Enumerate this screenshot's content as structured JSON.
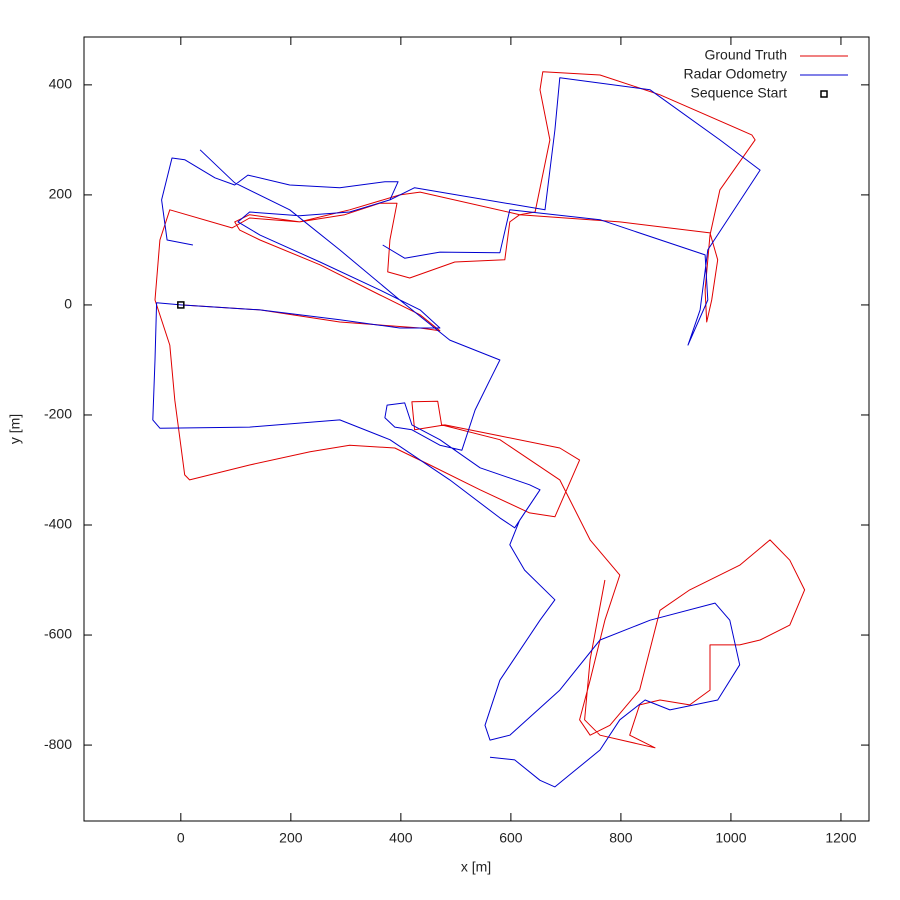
{
  "chart_data": {
    "type": "line",
    "xlabel": "x [m]",
    "ylabel": "y [m]",
    "xlim": [
      -176,
      1251
    ],
    "ylim": [
      -938,
      487
    ],
    "xticks": [
      0,
      200,
      400,
      600,
      800,
      1000,
      1200
    ],
    "yticks": [
      -800,
      -600,
      -400,
      -200,
      0,
      200,
      400
    ],
    "grid": false,
    "legend": "top-right",
    "series": [
      {
        "name": "Ground Truth",
        "color": "#e00000",
        "x": [
          0,
          144,
          289,
          435,
          471,
          435,
          362,
          253,
          144,
          107,
          98,
          125,
          216,
          298,
          362,
          393,
          380,
          376,
          416,
          498,
          589,
          598,
          616,
          798,
          962,
          976,
          965,
          956,
          953,
          962,
          980,
          1044,
          1038,
          871,
          762,
          658,
          653,
          671,
          644,
          616,
          435,
          398,
          307,
          216,
          125,
          93,
          -20,
          -38,
          -47,
          -20,
          -11,
          7,
          16,
          125,
          235,
          307,
          389,
          453,
          544,
          634,
          680,
          725,
          689,
          580,
          480,
          425,
          420,
          467,
          474,
          580,
          689,
          744,
          798,
          771,
          744,
          725,
          744,
          780,
          834,
          871,
          925,
          1016,
          1071,
          1107,
          1134,
          1107,
          1053,
          1016,
          962,
          962,
          925,
          871,
          834,
          816,
          862,
          762,
          734,
          744,
          771
        ],
        "values": [
          0,
          -9,
          -31,
          -42,
          -47,
          -18,
          18,
          73,
          118,
          136,
          151,
          164,
          151,
          164,
          185,
          185,
          118,
          60,
          49,
          78,
          82,
          151,
          164,
          151,
          131,
          82,
          9,
          -31,
          27,
          127,
          209,
          300,
          309,
          382,
          418,
          424,
          391,
          300,
          169,
          164,
          205,
          200,
          173,
          151,
          158,
          140,
          173,
          118,
          9,
          -73,
          -173,
          -309,
          -318,
          -291,
          -267,
          -255,
          -260,
          -291,
          -336,
          -378,
          -385,
          -282,
          -260,
          -238,
          -218,
          -227,
          -176,
          -175,
          -218,
          -245,
          -318,
          -427,
          -491,
          -573,
          -682,
          -754,
          -782,
          -764,
          -700,
          -555,
          -518,
          -473,
          -427,
          -464,
          -518,
          -582,
          -609,
          -618,
          -618,
          -700,
          -727,
          -718,
          -727,
          -782,
          -805,
          -782,
          -754,
          -645,
          -500
        ]
      },
      {
        "name": "Radar Odometry",
        "color": "#0000d0",
        "x": [
          22,
          -25,
          -35,
          -16,
          7,
          62,
          98,
          122,
          198,
          289,
          371,
          395,
          380,
          307,
          216,
          125,
          104,
          144,
          253,
          362,
          435,
          471,
          398,
          289,
          144,
          0,
          -44,
          -47,
          -51,
          -38,
          125,
          289,
          380,
          489,
          580,
          607,
          653,
          616,
          598,
          625,
          680,
          653,
          580,
          553,
          562,
          598,
          689,
          762,
          853,
          971,
          998,
          1016,
          976,
          889,
          844,
          798,
          762,
          707,
          680,
          653,
          607,
          562,
          null,
          367,
          407,
          471,
          580,
          598,
          762,
          953,
          958,
          922,
          944,
          958,
          1053,
          980,
          853,
          689,
          680,
          662,
          425,
          380,
          null,
          35,
          98,
          198,
          289,
          398,
          489,
          580,
          562,
          535,
          511,
          471,
          420,
          389,
          371,
          375,
          407,
          420,
          471,
          544,
          634,
          653
        ],
        "values": [
          109,
          118,
          191,
          267,
          264,
          231,
          218,
          236,
          218,
          213,
          224,
          224,
          191,
          169,
          162,
          169,
          151,
          127,
          78,
          27,
          -9,
          -42,
          -42,
          -27,
          -9,
          0,
          4,
          -100,
          -209,
          -224,
          -222,
          -209,
          -245,
          -318,
          -387,
          -405,
          -336,
          -391,
          -436,
          -482,
          -536,
          -573,
          -682,
          -764,
          -791,
          -782,
          -700,
          -609,
          -573,
          -542,
          -573,
          -654,
          -718,
          -736,
          -718,
          -754,
          -809,
          -854,
          -876,
          -864,
          -827,
          -822,
          null,
          109,
          85,
          96,
          95,
          173,
          155,
          91,
          9,
          -73,
          -9,
          100,
          245,
          300,
          391,
          413,
          318,
          173,
          213,
          191,
          null,
          282,
          222,
          173,
          100,
          9,
          -64,
          -100,
          -136,
          -191,
          -264,
          -255,
          -227,
          -222,
          -205,
          -182,
          -178,
          -218,
          -245,
          -296,
          -327,
          -336
        ]
      },
      {
        "name": "Sequence Start",
        "color": "#000000",
        "marker": "square",
        "x": [
          0
        ],
        "values": [
          0
        ]
      }
    ]
  }
}
